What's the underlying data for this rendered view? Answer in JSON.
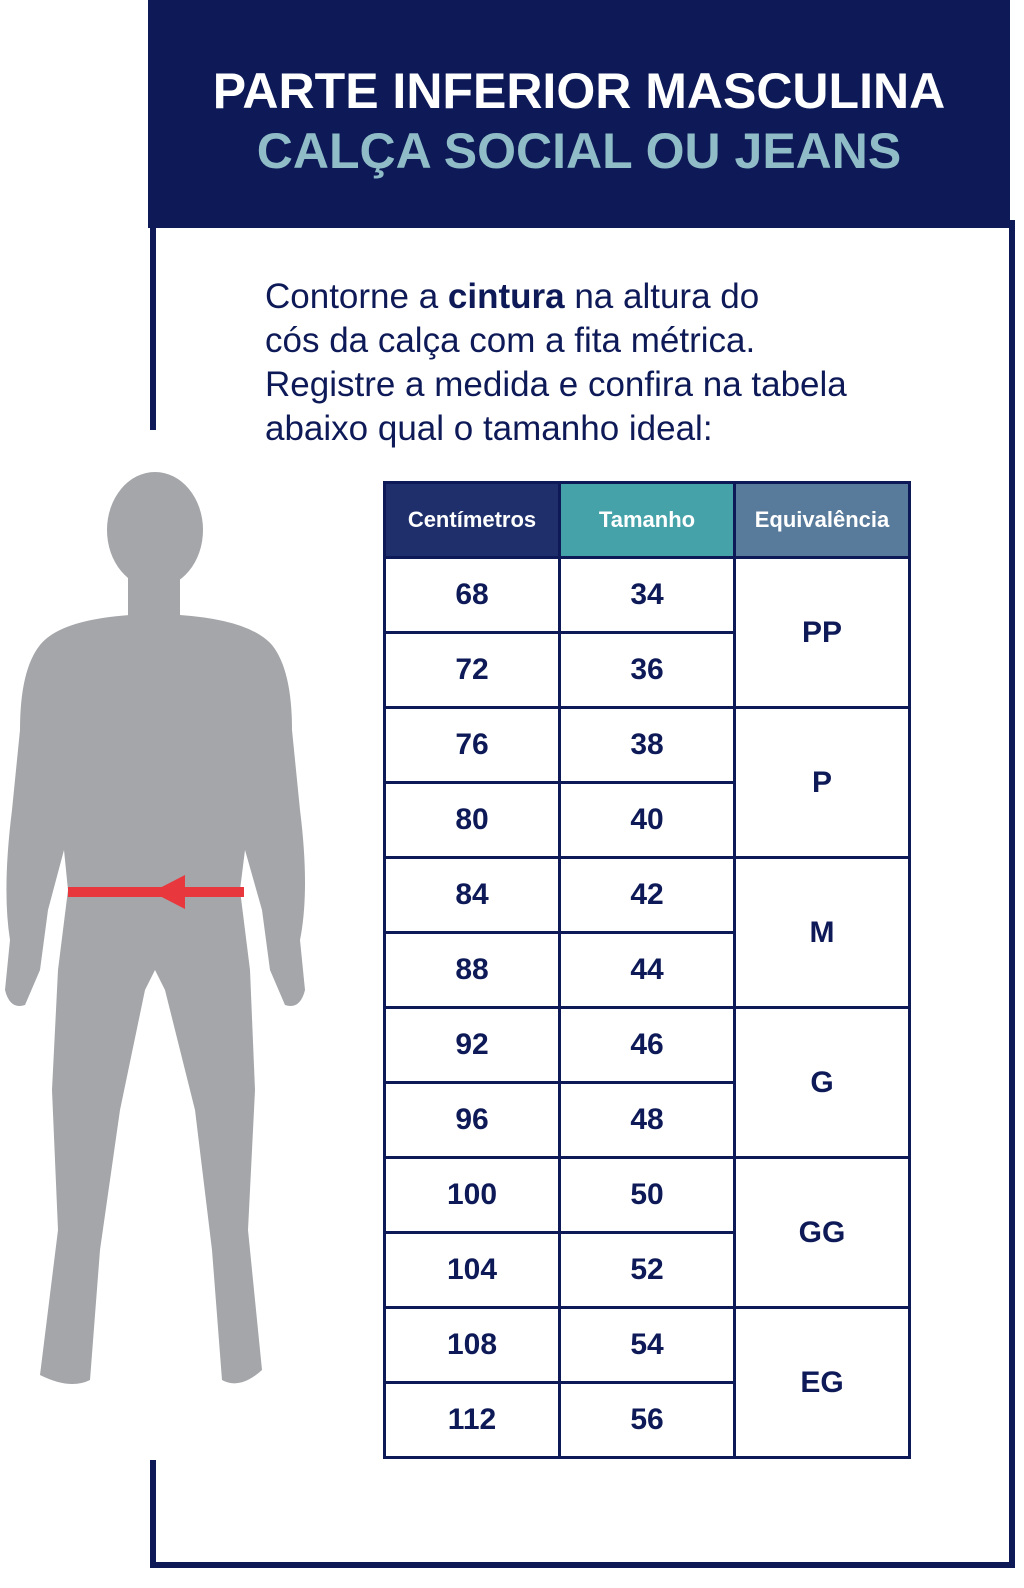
{
  "header": {
    "title": "PARTE INFERIOR MASCULINA",
    "subtitle": "CALÇA SOCIAL OU JEANS"
  },
  "instructions": {
    "part1": "Contorne a ",
    "bold": "cintura",
    "part2": " na altura do",
    "line2": "cós da calça com a fita métrica.",
    "line3": "Registre a medida e confira na tabela",
    "line4": "abaixo qual o tamanho ideal:"
  },
  "colors": {
    "navy": "#0d1a57",
    "teal": "#46a2a9",
    "steel": "#587a9b",
    "subtitle": "#8fbcc7",
    "figure": "#a4a6a9",
    "arrow": "#e8383d"
  },
  "table": {
    "headers": [
      "Centímetros",
      "Tamanho",
      "Equivalência"
    ],
    "rows": [
      {
        "cm": "68",
        "size": "34"
      },
      {
        "cm": "72",
        "size": "36"
      },
      {
        "cm": "76",
        "size": "38"
      },
      {
        "cm": "80",
        "size": "40"
      },
      {
        "cm": "84",
        "size": "42"
      },
      {
        "cm": "88",
        "size": "44"
      },
      {
        "cm": "92",
        "size": "46"
      },
      {
        "cm": "96",
        "size": "48"
      },
      {
        "cm": "100",
        "size": "50"
      },
      {
        "cm": "104",
        "size": "52"
      },
      {
        "cm": "108",
        "size": "54"
      },
      {
        "cm": "112",
        "size": "56"
      }
    ],
    "equivalence": [
      "PP",
      "P",
      "M",
      "G",
      "GG",
      "EG"
    ]
  }
}
